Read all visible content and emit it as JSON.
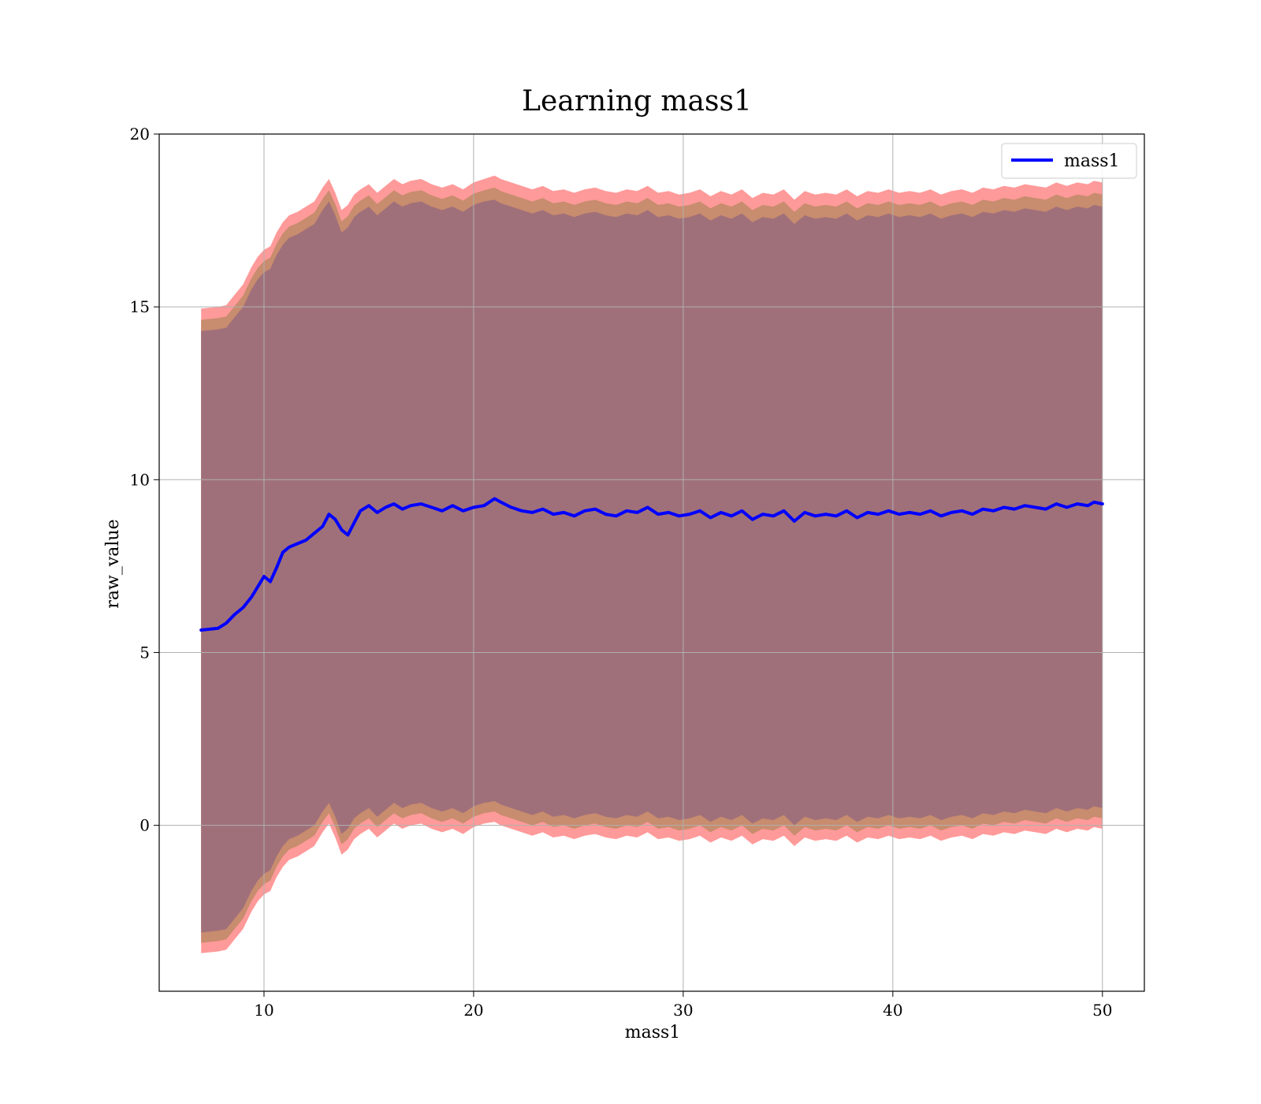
{
  "chart_data": {
    "type": "area",
    "title": "Learning mass1",
    "xlabel": "mass1",
    "ylabel": "raw_value",
    "xlim": [
      5,
      52
    ],
    "ylim": [
      -4.8,
      20
    ],
    "x_ticks": [
      10,
      20,
      30,
      40,
      50
    ],
    "y_ticks": [
      0,
      5,
      10,
      15,
      20
    ],
    "grid": true,
    "legend": {
      "position": "upper-right",
      "entries": [
        "mass1"
      ]
    },
    "colors": {
      "line": "#0000ff",
      "outer_band": "#ff9a9a",
      "middle_band": "#c88c6e",
      "inner_band": "#a0707a",
      "grid": "#b0b0b0"
    },
    "series": [
      {
        "name": "mass1",
        "x": [
          7.0,
          7.8,
          8.2,
          8.6,
          9.0,
          9.4,
          9.7,
          10.0,
          10.3,
          10.6,
          10.9,
          11.2,
          11.6,
          12.0,
          12.4,
          12.8,
          13.1,
          13.4,
          13.7,
          14.0,
          14.3,
          14.6,
          15.0,
          15.4,
          15.8,
          16.2,
          16.6,
          17.0,
          17.5,
          18.0,
          18.5,
          19.0,
          19.5,
          20.0,
          20.5,
          21.0,
          21.3,
          21.8,
          22.3,
          22.8,
          23.3,
          23.8,
          24.3,
          24.8,
          25.3,
          25.8,
          26.3,
          26.8,
          27.3,
          27.8,
          28.3,
          28.8,
          29.3,
          29.8,
          30.3,
          30.8,
          31.3,
          31.8,
          32.3,
          32.8,
          33.3,
          33.8,
          34.3,
          34.8,
          35.3,
          35.8,
          36.3,
          36.8,
          37.3,
          37.8,
          38.3,
          38.8,
          39.3,
          39.8,
          40.3,
          40.8,
          41.3,
          41.8,
          42.3,
          42.8,
          43.3,
          43.8,
          44.3,
          44.8,
          45.3,
          45.8,
          46.3,
          46.8,
          47.3,
          47.8,
          48.3,
          48.8,
          49.3,
          49.6,
          50.0
        ],
        "y": [
          5.65,
          5.7,
          5.85,
          6.1,
          6.3,
          6.6,
          6.9,
          7.2,
          7.05,
          7.45,
          7.9,
          8.05,
          8.15,
          8.25,
          8.45,
          8.65,
          9.0,
          8.85,
          8.55,
          8.4,
          8.75,
          9.1,
          9.25,
          9.05,
          9.2,
          9.3,
          9.15,
          9.25,
          9.3,
          9.2,
          9.1,
          9.25,
          9.1,
          9.2,
          9.25,
          9.45,
          9.35,
          9.2,
          9.1,
          9.05,
          9.15,
          9.0,
          9.05,
          8.95,
          9.1,
          9.15,
          9.0,
          8.95,
          9.1,
          9.05,
          9.2,
          9.0,
          9.05,
          8.95,
          9.0,
          9.1,
          8.9,
          9.05,
          8.95,
          9.1,
          8.85,
          9.0,
          8.95,
          9.1,
          8.8,
          9.05,
          8.95,
          9.0,
          8.95,
          9.1,
          8.9,
          9.05,
          9.0,
          9.1,
          9.0,
          9.05,
          9.0,
          9.1,
          8.95,
          9.05,
          9.1,
          9.0,
          9.15,
          9.1,
          9.2,
          9.15,
          9.25,
          9.2,
          9.15,
          9.3,
          9.2,
          9.3,
          9.25,
          9.35,
          9.3
        ]
      }
    ],
    "bands": {
      "outer_lower": [
        -3.7,
        -3.65,
        -3.6,
        -3.3,
        -3.0,
        -2.5,
        -2.2,
        -2.0,
        -1.9,
        -1.5,
        -1.2,
        -1.0,
        -0.9,
        -0.75,
        -0.6,
        -0.2,
        0.05,
        -0.35,
        -0.85,
        -0.7,
        -0.4,
        -0.25,
        -0.1,
        -0.35,
        -0.15,
        0.05,
        -0.1,
        0.0,
        0.05,
        -0.1,
        -0.2,
        -0.1,
        -0.25,
        -0.05,
        0.05,
        0.1,
        0.0,
        -0.1,
        -0.2,
        -0.3,
        -0.2,
        -0.35,
        -0.3,
        -0.4,
        -0.3,
        -0.25,
        -0.35,
        -0.4,
        -0.3,
        -0.35,
        -0.2,
        -0.4,
        -0.35,
        -0.45,
        -0.4,
        -0.3,
        -0.5,
        -0.35,
        -0.45,
        -0.3,
        -0.55,
        -0.4,
        -0.45,
        -0.3,
        -0.6,
        -0.35,
        -0.45,
        -0.4,
        -0.45,
        -0.3,
        -0.5,
        -0.35,
        -0.4,
        -0.3,
        -0.4,
        -0.35,
        -0.4,
        -0.3,
        -0.45,
        -0.35,
        -0.3,
        -0.4,
        -0.25,
        -0.3,
        -0.2,
        -0.25,
        -0.15,
        -0.2,
        -0.25,
        -0.1,
        -0.2,
        -0.1,
        -0.15,
        -0.05,
        -0.1
      ],
      "inner_lower": [
        -3.1,
        -3.05,
        -3.0,
        -2.7,
        -2.4,
        -1.9,
        -1.6,
        -1.4,
        -1.3,
        -0.9,
        -0.6,
        -0.4,
        -0.3,
        -0.15,
        0.0,
        0.4,
        0.65,
        0.25,
        -0.25,
        -0.1,
        0.2,
        0.35,
        0.5,
        0.25,
        0.45,
        0.65,
        0.5,
        0.6,
        0.65,
        0.5,
        0.4,
        0.5,
        0.35,
        0.55,
        0.65,
        0.7,
        0.6,
        0.5,
        0.4,
        0.3,
        0.4,
        0.25,
        0.3,
        0.2,
        0.3,
        0.35,
        0.25,
        0.2,
        0.3,
        0.25,
        0.4,
        0.2,
        0.25,
        0.15,
        0.2,
        0.3,
        0.1,
        0.25,
        0.15,
        0.3,
        0.05,
        0.2,
        0.15,
        0.3,
        0.0,
        0.25,
        0.15,
        0.2,
        0.15,
        0.3,
        0.1,
        0.25,
        0.2,
        0.3,
        0.2,
        0.25,
        0.2,
        0.3,
        0.15,
        0.25,
        0.3,
        0.2,
        0.35,
        0.3,
        0.4,
        0.35,
        0.45,
        0.4,
        0.35,
        0.5,
        0.4,
        0.5,
        0.45,
        0.55,
        0.5
      ],
      "inner_upper": [
        14.3,
        14.35,
        14.4,
        14.7,
        15.0,
        15.5,
        15.8,
        16.0,
        16.1,
        16.5,
        16.8,
        17.0,
        17.1,
        17.25,
        17.4,
        17.8,
        18.05,
        17.65,
        17.15,
        17.3,
        17.6,
        17.75,
        17.9,
        17.65,
        17.85,
        18.05,
        17.9,
        18.0,
        18.05,
        17.9,
        17.8,
        17.9,
        17.75,
        17.95,
        18.05,
        18.1,
        18.0,
        17.9,
        17.8,
        17.7,
        17.8,
        17.65,
        17.7,
        17.6,
        17.7,
        17.75,
        17.65,
        17.6,
        17.7,
        17.65,
        17.8,
        17.6,
        17.65,
        17.55,
        17.6,
        17.7,
        17.5,
        17.65,
        17.55,
        17.7,
        17.45,
        17.6,
        17.55,
        17.7,
        17.4,
        17.65,
        17.55,
        17.6,
        17.55,
        17.7,
        17.5,
        17.65,
        17.6,
        17.7,
        17.6,
        17.65,
        17.6,
        17.7,
        17.55,
        17.65,
        17.7,
        17.6,
        17.75,
        17.7,
        17.8,
        17.75,
        17.85,
        17.8,
        17.75,
        17.9,
        17.8,
        17.9,
        17.85,
        17.95,
        17.9
      ],
      "outer_upper": [
        14.95,
        15.0,
        15.05,
        15.35,
        15.65,
        16.15,
        16.45,
        16.65,
        16.75,
        17.15,
        17.45,
        17.65,
        17.75,
        17.9,
        18.05,
        18.45,
        18.7,
        18.3,
        17.8,
        17.95,
        18.25,
        18.4,
        18.55,
        18.3,
        18.5,
        18.7,
        18.55,
        18.65,
        18.7,
        18.55,
        18.45,
        18.55,
        18.4,
        18.6,
        18.7,
        18.8,
        18.7,
        18.6,
        18.5,
        18.4,
        18.5,
        18.35,
        18.4,
        18.3,
        18.4,
        18.45,
        18.35,
        18.3,
        18.4,
        18.35,
        18.5,
        18.3,
        18.35,
        18.25,
        18.3,
        18.4,
        18.2,
        18.35,
        18.25,
        18.4,
        18.15,
        18.3,
        18.25,
        18.4,
        18.1,
        18.35,
        18.25,
        18.3,
        18.25,
        18.4,
        18.2,
        18.35,
        18.3,
        18.4,
        18.3,
        18.35,
        18.3,
        18.4,
        18.25,
        18.35,
        18.4,
        18.3,
        18.45,
        18.4,
        18.5,
        18.45,
        18.55,
        18.5,
        18.45,
        18.6,
        18.5,
        18.6,
        18.55,
        18.65,
        18.6
      ]
    }
  }
}
